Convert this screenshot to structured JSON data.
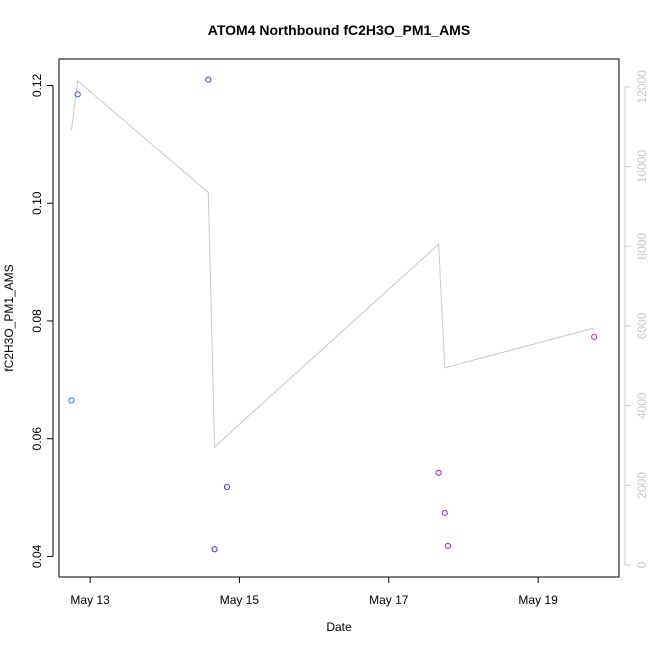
{
  "chart_data": {
    "type": "scatter",
    "title": "ATOM4 Northbound fC2H3O_PM1_AMS",
    "xlabel": "Date",
    "ylabel": "fC2H3O_PM1_AMS",
    "x_ticks": [
      "May 13",
      "May 15",
      "May 17",
      "May 19"
    ],
    "y_ticks": [
      "0.04",
      "0.06",
      "0.08",
      "0.10",
      "0.12"
    ],
    "y2_ticks": [
      "0",
      "2000",
      "4000",
      "6000",
      "8000",
      "10000",
      "12000"
    ],
    "xlim": [
      "2017-05-12 14:00",
      "2017-05-20 02:00"
    ],
    "ylim": [
      0.0365,
      0.1245
    ],
    "y2lim": [
      -300,
      12700
    ],
    "grid": false,
    "legend": "none",
    "points": [
      {
        "x": "2017-05-12 18:00",
        "y": 0.0665,
        "color": "#2d6fd6"
      },
      {
        "x": "2017-05-12 20:00",
        "y": 0.1185,
        "color": "#2f62e8"
      },
      {
        "x": "2017-05-14 14:00",
        "y": 0.121,
        "color": "#3a3ae8"
      },
      {
        "x": "2017-05-14 16:00",
        "y": 0.0412,
        "color": "#4030e8"
      },
      {
        "x": "2017-05-14 20:00",
        "y": 0.0518,
        "color": "#4a2fe8"
      },
      {
        "x": "2017-05-17 16:00",
        "y": 0.0542,
        "color": "#a020e0"
      },
      {
        "x": "2017-05-17 18:00",
        "y": 0.0474,
        "color": "#b020e0"
      },
      {
        "x": "2017-05-17 19:00",
        "y": 0.0418,
        "color": "#b81cd8"
      },
      {
        "x": "2017-05-19 18:00",
        "y": 0.0773,
        "color": "#e020c0"
      }
    ],
    "altitude_series": {
      "axis": "right",
      "color": "#c8c8c8",
      "points": [
        {
          "x": "2017-05-12 18:00",
          "y": 10900
        },
        {
          "x": "2017-05-12 20:00",
          "y": 12150
        },
        {
          "x": "2017-05-14 14:00",
          "y": 9350
        },
        {
          "x": "2017-05-14 16:00",
          "y": 2950
        },
        {
          "x": "2017-05-14 20:00",
          "y": 3250
        },
        {
          "x": "2017-05-17 16:00",
          "y": 8050
        },
        {
          "x": "2017-05-17 18:00",
          "y": 4950
        },
        {
          "x": "2017-05-19 18:00",
          "y": 5950
        }
      ]
    }
  }
}
